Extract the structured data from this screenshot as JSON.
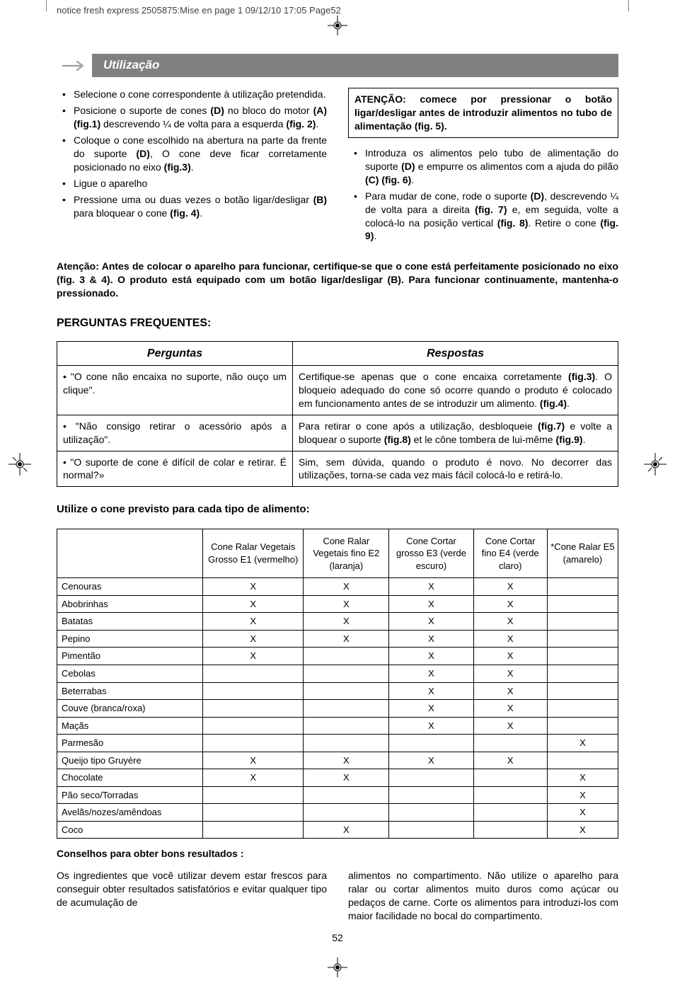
{
  "header_info": "notice fresh express 2505875:Mise en page 1  09/12/10  17:05  Page52",
  "section_title": "Utilização",
  "left_bullets": [
    "Selecione o cone correspondente à utilização pretendida.",
    "Posicione o suporte de cones <b>(D)</b> no bloco do motor <b>(A) (fig.1)</b> descrevendo ¼ de volta para a esquerda <b>(fig. 2)</b>.",
    "Coloque o cone escolhido na abertura na parte da frente do suporte <b>(D)</b>, O cone deve ficar corretamente posicionado no eixo <b>(fig.3)</b>.",
    "Ligue o aparelho",
    "Pressione uma ou duas vezes o botão ligar/desligar <b>(B)</b> para bloquear o cone <b>(fig. 4)</b>."
  ],
  "attention_box": "ATENÇÃO: comece por pressionar o botão ligar/desligar antes de introduzir alimentos no tubo de alimentação (fig. 5).",
  "right_bullets": [
    "Introduza os alimentos pelo tubo de alimentação do suporte <b>(D)</b> e empurre os alimentos com a ajuda do pilão <b>(C) (fig. 6)</b>.",
    "Para mudar de cone, rode o suporte <b>(D)</b>, descrevendo ¼ de volta para a direita <b>(fig. 7)</b> e, em seguida, volte a colocá-lo na posição vertical <b>(fig. 8)</b>. Retire o cone <b>(fig. 9)</b>."
  ],
  "attention_block": "Atenção: Antes de colocar o aparelho para funcionar, certifique-se que o cone está perfeitamente posicionado no eixo (fig. 3 & 4).  O produto está equipado com um botão ligar/desligar (B). Para funcionar continuamente, mantenha-o pressionado.",
  "faq_heading": "PERGUNTAS FREQUENTES:",
  "faq_headers": {
    "q": "Perguntas",
    "a": "Respostas"
  },
  "faq_rows": [
    {
      "q": "• \"O cone não encaixa no suporte, não ouço um clique\".",
      "a": "Certifique-se apenas que o cone encaixa corretamente <b>(fig.3)</b>. O bloqueio adequado do cone só ocorre quando o produto é colocado em funcionamento antes de se introduzir um alimento. <b>(fig.4)</b>."
    },
    {
      "q": "• \"Não consigo retirar o acessório após a utilização\".",
      "a": "Para retirar o cone após a utilização, desbloqueie <b>(fig.7)</b> e volte a bloquear o suporte <b>(fig.8)</b> et le cône tombera de lui-même <b>(fig.9)</b>."
    },
    {
      "q": "• \"O suporte de cone é difícil de colar e retirar. É normal?»",
      "a": "Sim, sem dúvida, quando o produto é novo. No decorrer das utilizações, torna-se cada vez mais fácil colocá-lo e retirá-lo."
    }
  ],
  "food_caption": "Utilize o cone previsto para cada tipo de alimento:",
  "food_columns": [
    "",
    "Cone Ralar Vegetais Grosso E1 (vermelho)",
    "Cone Ralar Vegetais fino E2 (laranja)",
    "Cone Cortar grosso E3 (verde escuro)",
    "Cone Cortar fino E4 (verde claro)",
    "*Cone Ralar E5 (amarelo)"
  ],
  "food_rows": [
    {
      "name": "Cenouras",
      "marks": [
        "X",
        "X",
        "X",
        "X",
        ""
      ]
    },
    {
      "name": "Abobrinhas",
      "marks": [
        "X",
        "X",
        "X",
        "X",
        ""
      ]
    },
    {
      "name": "Batatas",
      "marks": [
        "X",
        "X",
        "X",
        "X",
        ""
      ]
    },
    {
      "name": "Pepino",
      "marks": [
        "X",
        "X",
        "X",
        "X",
        ""
      ]
    },
    {
      "name": "Pimentão",
      "marks": [
        "X",
        "",
        "X",
        "X",
        ""
      ]
    },
    {
      "name": "Cebolas",
      "marks": [
        "",
        "",
        "X",
        "X",
        ""
      ]
    },
    {
      "name": "Beterrabas",
      "marks": [
        "",
        "",
        "X",
        "X",
        ""
      ]
    },
    {
      "name": "Couve (branca/roxa)",
      "marks": [
        "",
        "",
        "X",
        "X",
        ""
      ]
    },
    {
      "name": "Maçãs",
      "marks": [
        "",
        "",
        "X",
        "X",
        ""
      ]
    },
    {
      "name": "Parmesão",
      "marks": [
        "",
        "",
        "",
        "",
        "X"
      ]
    },
    {
      "name": "Queijo tipo Gruyère",
      "marks": [
        "X",
        "X",
        "X",
        "X",
        ""
      ]
    },
    {
      "name": "Chocolate",
      "marks": [
        "X",
        "X",
        "",
        "",
        "X"
      ]
    },
    {
      "name": "Pão seco/Torradas",
      "marks": [
        "",
        "",
        "",
        "",
        "X"
      ]
    },
    {
      "name": "Avelãs/nozes/amêndoas",
      "marks": [
        "",
        "",
        "",
        "",
        "X"
      ]
    },
    {
      "name": "Coco",
      "marks": [
        "",
        "X",
        "",
        "",
        "X"
      ]
    }
  ],
  "tips_title": "Conselhos para obter bons resultados :",
  "tips_left": "Os ingredientes que você utilizar devem estar frescos para conseguir obter resultados satisfatórios e evitar qualquer tipo de acumulação de",
  "tips_right": "alimentos no compartimento. Não utilize o aparelho para ralar ou cortar alimentos muito duros como açúcar ou pedaços de carne. Corte os alimentos para introduzi-los com maior facilidade no bocal do compartimento.",
  "page_number": "52",
  "colors": {
    "banner_bg": "#808080",
    "banner_text": "#ffffff",
    "text": "#000000",
    "border": "#000000"
  }
}
